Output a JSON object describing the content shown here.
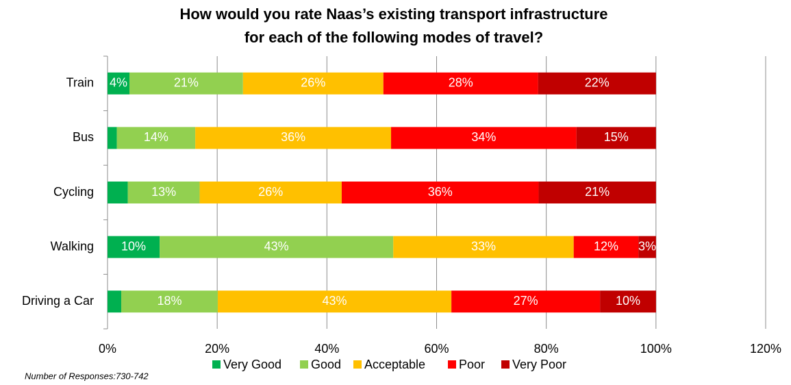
{
  "chart_data": {
    "type": "stacked_barh",
    "title": [
      "How would you rate Naas’s existing transport infrastructure",
      "for each of the following modes of travel?"
    ],
    "categories": [
      "Train",
      "Bus",
      "Cycling",
      "Walking",
      "Driving a Car"
    ],
    "series": [
      {
        "name": "Very Good",
        "color": "#00b050",
        "values": [
          4.0,
          1.7,
          3.7,
          9.5,
          2.5
        ],
        "value_labels": [
          "4%",
          null,
          null,
          "10%",
          null
        ]
      },
      {
        "name": "Good",
        "color": "#92d050",
        "values": [
          20.7,
          14.3,
          13.1,
          42.6,
          17.6
        ],
        "value_labels": [
          "21%",
          "14%",
          "13%",
          "43%",
          "18%"
        ]
      },
      {
        "name": "Acceptable",
        "color": "#ffc000",
        "values": [
          25.6,
          35.7,
          25.9,
          32.9,
          42.6
        ],
        "value_labels": [
          "26%",
          "36%",
          "26%",
          "33%",
          "43%"
        ]
      },
      {
        "name": "Poor",
        "color": "#ff0000",
        "values": [
          28.2,
          33.8,
          35.9,
          11.8,
          27.1
        ],
        "value_labels": [
          "28%",
          "34%",
          "36%",
          "12%",
          "27%"
        ]
      },
      {
        "name": "Very Poor",
        "color": "#c00000",
        "values": [
          21.5,
          14.5,
          21.4,
          3.2,
          10.2
        ],
        "value_labels": [
          "22%",
          "15%",
          "21%",
          "3%",
          "10%"
        ]
      }
    ],
    "xlim": [
      0,
      120
    ],
    "xticks": [
      {
        "value": 0,
        "label": "0%"
      },
      {
        "value": 20,
        "label": "20%"
      },
      {
        "value": 40,
        "label": "40%"
      },
      {
        "value": 60,
        "label": "60%"
      },
      {
        "value": 80,
        "label": "80%"
      },
      {
        "value": 100,
        "label": "100%"
      },
      {
        "value": 120,
        "label": "120%"
      }
    ],
    "grid": true,
    "legend": "bottom",
    "footnote": "Number of Responses:730-742"
  }
}
